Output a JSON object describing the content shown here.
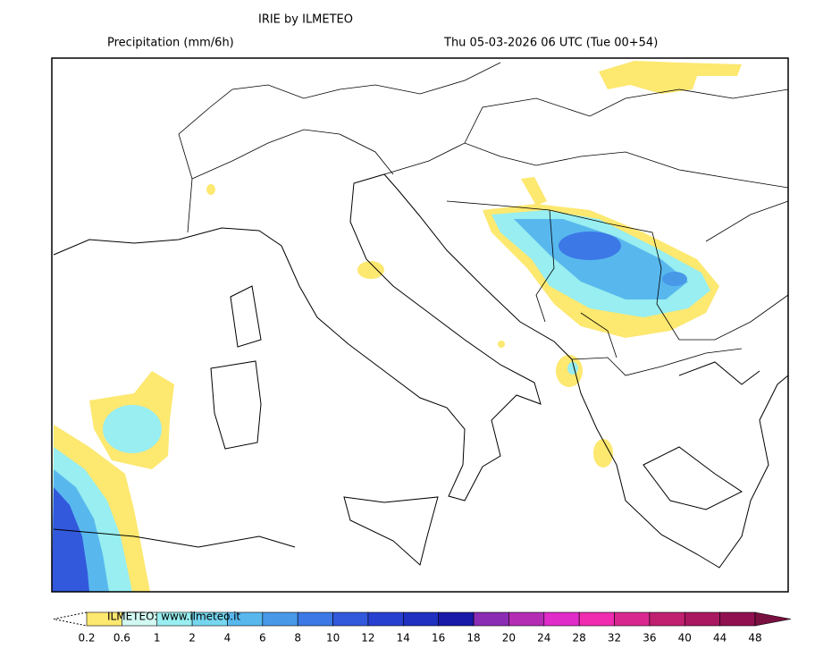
{
  "header": {
    "title": "IRIE by ILMETEO",
    "variable": "Precipitation (mm/6h)",
    "valid_time": "Thu 05-03-2026 06 UTC (Tue 00+54)"
  },
  "colorbar": {
    "watermark": "ILMETEO: www.ilmeteo.it",
    "levels": [
      0.2,
      0.6,
      1,
      2,
      4,
      6,
      8,
      10,
      12,
      14,
      16,
      18,
      20,
      24,
      28,
      32,
      36,
      40,
      44,
      48
    ],
    "colors": [
      "#fde870",
      "#d2f8f2",
      "#98eef0",
      "#76d6f0",
      "#58b8ee",
      "#4898e8",
      "#3c78e6",
      "#3258dc",
      "#2840d0",
      "#2030c0",
      "#1818a8",
      "#8a2cb4",
      "#b42cb4",
      "#e02cc8",
      "#f02cb0",
      "#d82890",
      "#c02070",
      "#a81860",
      "#901050"
    ],
    "over_color": "#781040"
  }
}
